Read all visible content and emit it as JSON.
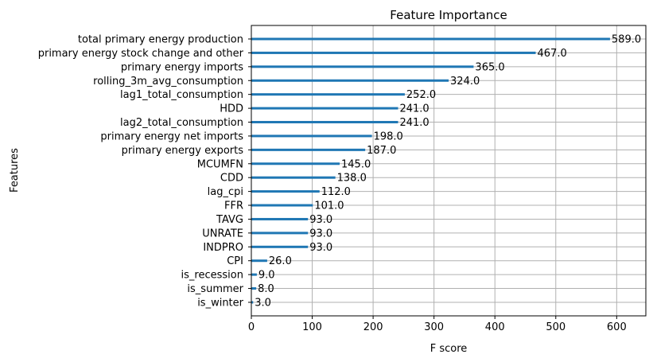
{
  "chart_data": {
    "type": "bar",
    "orientation": "horizontal",
    "title": "Feature Importance",
    "xlabel": "F score",
    "ylabel": "Features",
    "xlim": [
      0,
      647.9
    ],
    "xticks": [
      0,
      100,
      200,
      300,
      400,
      500,
      600
    ],
    "grid": true,
    "bar_color": "#1f77b4",
    "categories": [
      "total primary energy production",
      "primary energy stock change and other",
      "primary energy imports",
      "rolling_3m_avg_consumption",
      "lag1_total_consumption",
      "HDD",
      "lag2_total_consumption",
      "primary energy net imports",
      "primary energy exports",
      "MCUMFN",
      "CDD",
      "lag_cpi",
      "FFR",
      "TAVG",
      "UNRATE",
      "INDPRO",
      "CPI",
      "is_recession",
      "is_summer",
      "is_winter"
    ],
    "values": [
      589.0,
      467.0,
      365.0,
      324.0,
      252.0,
      241.0,
      241.0,
      198.0,
      187.0,
      145.0,
      138.0,
      112.0,
      101.0,
      93.0,
      93.0,
      93.0,
      26.0,
      9.0,
      8.0,
      3.0
    ],
    "value_labels": [
      "589.0",
      "467.0",
      "365.0",
      "324.0",
      "252.0",
      "241.0",
      "241.0",
      "198.0",
      "187.0",
      "145.0",
      "138.0",
      "112.0",
      "101.0",
      "93.0",
      "93.0",
      "93.0",
      "26.0",
      "9.0",
      "8.0",
      "3.0"
    ]
  }
}
